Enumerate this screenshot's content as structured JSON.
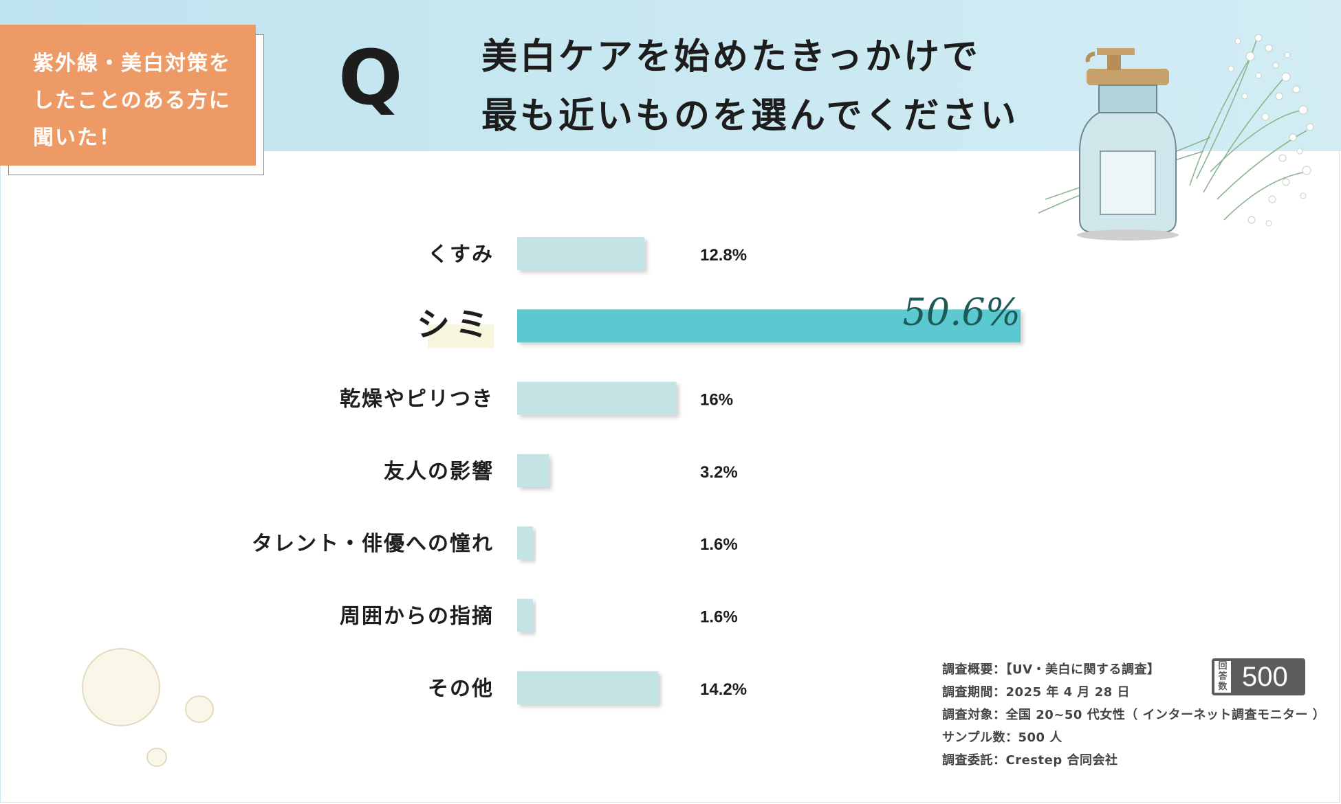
{
  "badge": {
    "line1": "紫外線・美白対策を",
    "line2": "したことのある方に",
    "line3": "聞いた！"
  },
  "question": {
    "mark": "Q",
    "line1": "美白ケアを始めたきっかけで",
    "line2": "最も近いものを選んでください"
  },
  "chart_data": {
    "type": "bar",
    "orientation": "horizontal",
    "categories": [
      "くすみ",
      "シミ",
      "乾燥やピリつき",
      "友人の影響",
      "タレント・俳優への憧れ",
      "周囲からの指摘",
      "その他"
    ],
    "values": [
      12.8,
      50.6,
      16,
      3.2,
      1.6,
      1.6,
      14.2
    ],
    "value_labels": [
      "12.8%",
      "50.6%",
      "16%",
      "3.2%",
      "1.6%",
      "1.6%",
      "14.2%"
    ],
    "highlight_index": 1,
    "xlim": [
      0,
      50.6
    ],
    "title": "",
    "xlabel": "",
    "ylabel": "",
    "grid": false,
    "colors": {
      "bar": "#c3e3e4",
      "highlight_bar": "#5bc8d0",
      "highlight_label": "#1d5b58",
      "highlight_marker": "#f7f6dd"
    }
  },
  "survey": {
    "line1": "調査概要：【UV・美白に関する調査】",
    "line2": "調査期間：2025 年 4 月 28 日",
    "line3": "調査対象：全国 20~50 代女性（ インターネット調査モニター ）",
    "line4": "サンプル数：500 人",
    "line5": "調査委託：Crestep 合同会社"
  },
  "responses": {
    "label": "回答数",
    "count": "500"
  },
  "decorations": {
    "bottle": "pump-bottle-illustration",
    "flowers": "babys-breath-illustration",
    "drops": "serum-drops-illustration"
  }
}
